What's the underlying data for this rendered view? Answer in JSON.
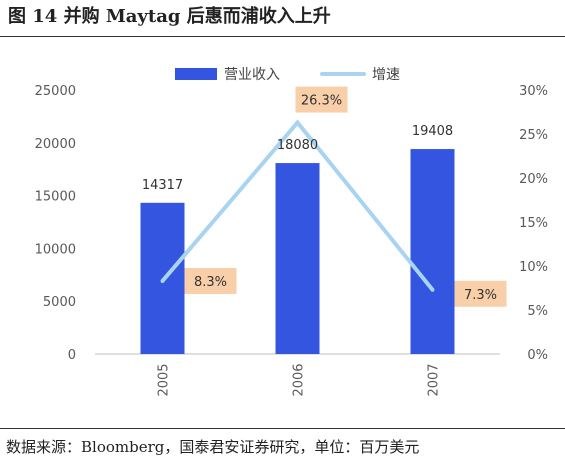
{
  "title": "图 14  并购 Maytag 后惠而浦收入上升",
  "source": "数据来源：Bloomberg，国泰君安证券研究，单位：百万美元",
  "chart_data": {
    "type": "bar",
    "categories": [
      "2005",
      "2006",
      "2007"
    ],
    "series": [
      {
        "name": "营业收入",
        "type": "bar",
        "axis": "left",
        "values": [
          14317,
          18080,
          19408
        ],
        "labels": [
          "14317",
          "18080",
          "19408"
        ],
        "color": "#3355e0"
      },
      {
        "name": "增速",
        "type": "line",
        "axis": "right",
        "values": [
          8.3,
          26.3,
          7.3
        ],
        "labels": [
          "8.3%",
          "26.3%",
          "7.3%"
        ],
        "color": "#a8d4f2"
      }
    ],
    "ylim_left": [
      0,
      25000
    ],
    "yticks_left": [
      "0",
      "5000",
      "10000",
      "15000",
      "20000",
      "25000"
    ],
    "ylim_right": [
      0,
      30
    ],
    "yticks_right": [
      "0%",
      "5%",
      "10%",
      "15%",
      "20%",
      "25%",
      "30%"
    ],
    "legend_position": "top",
    "label_box_color": "#f8cfa8",
    "grid": false
  }
}
